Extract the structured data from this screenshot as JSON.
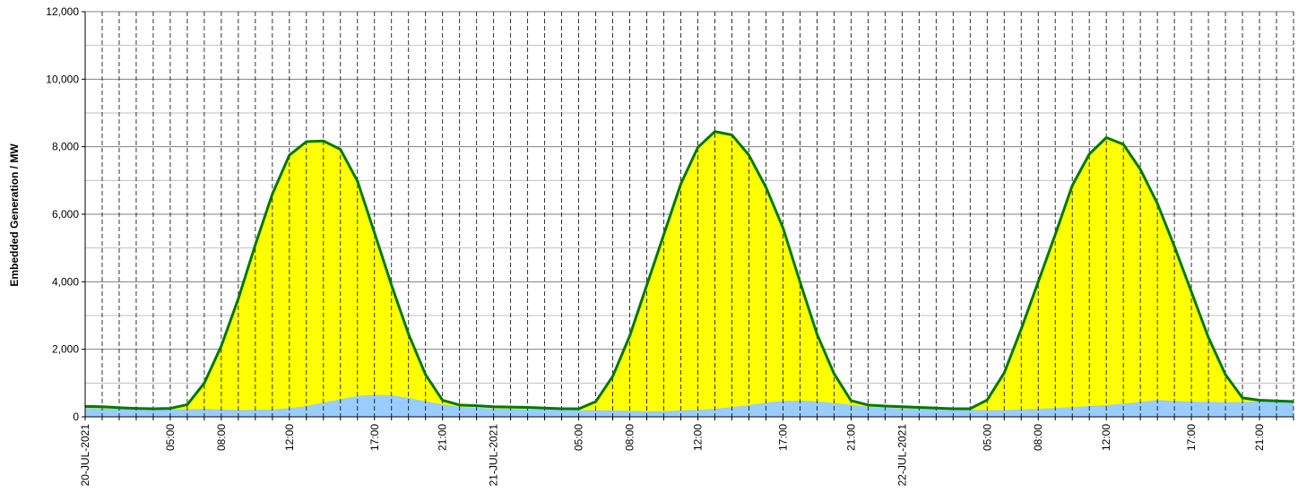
{
  "chart_data": {
    "type": "area",
    "title": "",
    "xlabel": "",
    "ylabel": "Embedded Generation / MW",
    "ylim": [
      0,
      12000
    ],
    "y_ticks": [
      0,
      2000,
      4000,
      6000,
      8000,
      10000,
      12000
    ],
    "y_tick_labels": [
      "0",
      "2,000",
      "4,000",
      "6,000",
      "8,000",
      "10,000",
      "12,000"
    ],
    "x_start_hour": 0,
    "x_end_hour": 71,
    "x_tick_labels": [
      {
        "hour": 0,
        "label": "20-JUL-2021"
      },
      {
        "hour": 5,
        "label": "05:00"
      },
      {
        "hour": 8,
        "label": "08:00"
      },
      {
        "hour": 12,
        "label": "12:00"
      },
      {
        "hour": 17,
        "label": "17:00"
      },
      {
        "hour": 21,
        "label": "21:00"
      },
      {
        "hour": 24,
        "label": "21-JUL-2021"
      },
      {
        "hour": 29,
        "label": "05:00"
      },
      {
        "hour": 32,
        "label": "08:00"
      },
      {
        "hour": 36,
        "label": "12:00"
      },
      {
        "hour": 41,
        "label": "17:00"
      },
      {
        "hour": 45,
        "label": "21:00"
      },
      {
        "hour": 48,
        "label": "22-JUL-2021"
      },
      {
        "hour": 53,
        "label": "05:00"
      },
      {
        "hour": 56,
        "label": "08:00"
      },
      {
        "hour": 60,
        "label": "12:00"
      },
      {
        "hour": 65,
        "label": "17:00"
      },
      {
        "hour": 69,
        "label": "21:00"
      }
    ],
    "grid": true,
    "legend": "none",
    "colors": {
      "base_fill": "#99ccff",
      "top_fill": "#ffff00",
      "total_line": "#007a00",
      "major_grid": "#808080",
      "minor_grid": "#c0c0c0",
      "hour_grid": "#000000"
    },
    "series": [
      {
        "values": [
          260,
          250,
          230,
          220,
          220,
          220,
          230,
          240,
          220,
          200,
          210,
          220,
          260,
          320,
          420,
          520,
          620,
          650,
          640,
          560,
          460,
          370,
          300,
          270,
          250,
          240,
          230,
          220,
          210,
          200,
          200,
          190,
          180,
          170,
          170,
          190,
          210,
          240,
          290,
          350,
          420,
          470,
          480,
          460,
          410,
          360,
          300,
          270,
          250,
          240,
          230,
          220,
          210,
          200,
          200,
          220,
          240,
          260,
          290,
          320,
          350,
          390,
          440,
          500,
          470,
          450,
          440,
          430,
          440,
          450,
          450,
          440
        ]
      },
      {
        "values": [
          310,
          300,
          270,
          250,
          240,
          250,
          360,
          1000,
          2100,
          3500,
          5100,
          6600,
          7750,
          8150,
          8170,
          7920,
          6980,
          5450,
          3900,
          2450,
          1250,
          490,
          350,
          330,
          300,
          290,
          280,
          260,
          240,
          235,
          450,
          1200,
          2400,
          3900,
          5400,
          6900,
          7980,
          8450,
          8350,
          7750,
          6800,
          5600,
          4000,
          2450,
          1280,
          480,
          350,
          320,
          300,
          280,
          260,
          240,
          240,
          500,
          1300,
          2600,
          4000,
          5400,
          6850,
          7780,
          8270,
          8070,
          7330,
          6320,
          5050,
          3700,
          2350,
          1250,
          560,
          490,
          470,
          450
        ]
      }
    ]
  }
}
